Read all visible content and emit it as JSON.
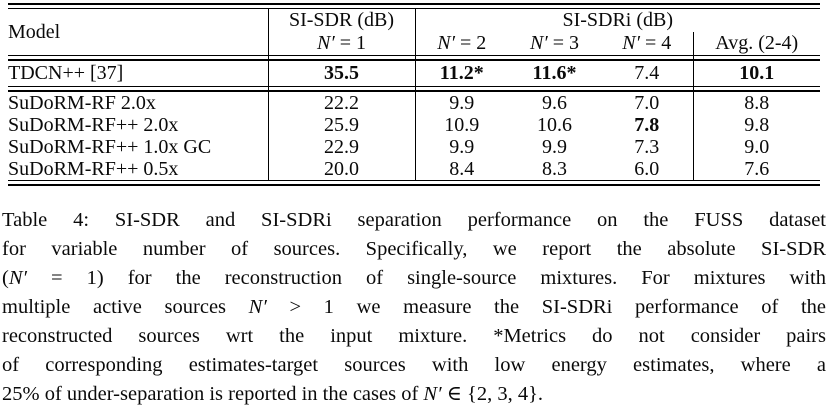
{
  "table": {
    "header": {
      "model": "Model",
      "si_sdr": "SI-SDR (dB)",
      "si_sdri": "SI-SDRi (dB)",
      "avg": "Avg. (2-4)",
      "n1": {
        "sym": "N′",
        "rest": " = 1"
      },
      "n2": {
        "sym": "N′",
        "rest": " = 2"
      },
      "n3": {
        "sym": "N′",
        "rest": " = 3"
      },
      "n4": {
        "sym": "N′",
        "rest": " = 4"
      }
    },
    "rows": [
      {
        "model": "TDCN++ [37]",
        "v": [
          "35.5",
          "11.2*",
          "11.6*",
          "7.4",
          "10.1"
        ]
      },
      {
        "model": "SuDoRM-RF 2.0x",
        "v": [
          "22.2",
          "9.9",
          "9.6",
          "7.0",
          "8.8"
        ]
      },
      {
        "model": "SuDoRM-RF++ 2.0x",
        "v": [
          "25.9",
          "10.9",
          "10.6",
          "7.8",
          "9.8"
        ]
      },
      {
        "model": "SuDoRM-RF++ 1.0x GC",
        "v": [
          "22.9",
          "9.9",
          "9.9",
          "7.3",
          "9.0"
        ]
      },
      {
        "model": "SuDoRM-RF++ 0.5x",
        "v": [
          "20.0",
          "8.4",
          "8.3",
          "6.0",
          "7.6"
        ]
      }
    ]
  },
  "caption": {
    "lines": [
      {
        "pre": "Table 4: SI-SDR and SI-SDRi separation performance on the FUSS dataset"
      },
      {
        "pre": "for variable number of sources. Specifically, we report the absolute SI-SDR"
      },
      {
        "pre": "(",
        "sym": "N′",
        "post": " = 1) for the reconstruction of single-source mixtures. For mixtures with"
      },
      {
        "pre": "multiple active sources ",
        "sym": "N′",
        "post": " > 1 we measure the SI-SDRi performance of the"
      },
      {
        "pre": "reconstructed sources wrt the input mixture. *Metrics do not consider pairs"
      },
      {
        "pre": "of corresponding estimates-target sources with low energy estimates, where a"
      },
      {
        "pre": "25% of under-separation is reported in the cases of ",
        "sym": "N′",
        "post": " ∈ {2, 3, 4}."
      }
    ]
  }
}
